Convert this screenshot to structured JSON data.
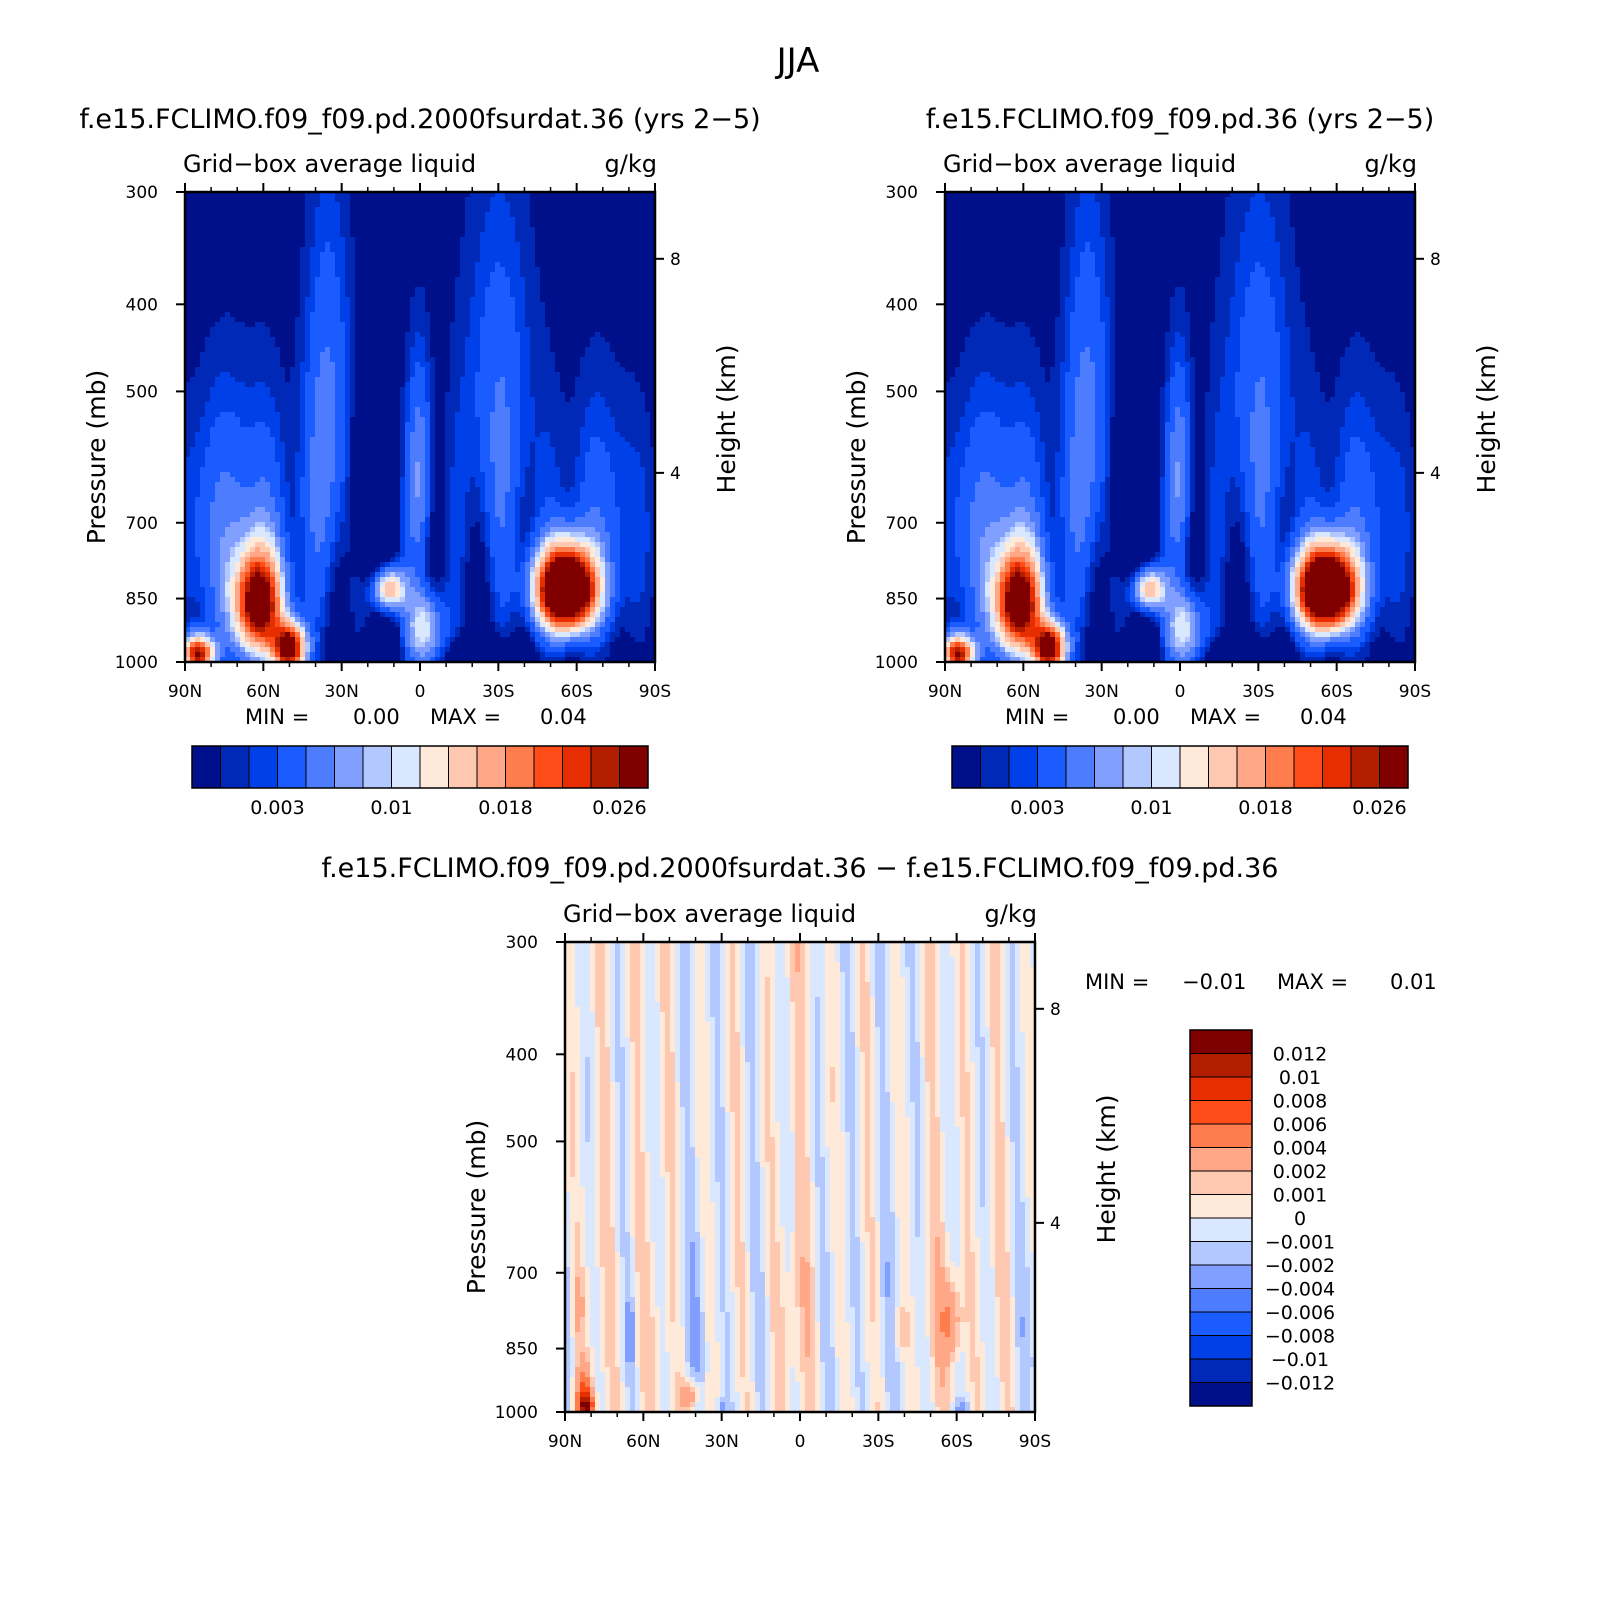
{
  "figure_title": "JJA",
  "variable_label": "Grid−box average liquid",
  "units": "g/kg",
  "colors": {
    "abs_palette": [
      "#000f8a",
      "#0029b8",
      "#0040e8",
      "#1a5cff",
      "#4d7cff",
      "#809fff",
      "#b3c8ff",
      "#d9e8ff",
      "#ffead9",
      "#ffc8b0",
      "#ffa787",
      "#ff7d4d",
      "#ff4d1a",
      "#e62e00",
      "#b31d00",
      "#800000"
    ],
    "diff_palette": [
      "#000f8a",
      "#0029b8",
      "#0040e8",
      "#1a5cff",
      "#4d7cff",
      "#809fff",
      "#b3c8ff",
      "#d9e8ff",
      "#ffead9",
      "#ffc8b0",
      "#ffa787",
      "#ff7d4d",
      "#ff4d1a",
      "#e62e00",
      "#b31d00",
      "#800000"
    ]
  },
  "panels": [
    {
      "id": "case-1",
      "title": "f.e15.FCLIMO.f09_f09.pd.2000fsurdat.36 (yrs 2−5)",
      "min_label": "MIN =",
      "min_value": "0.00",
      "max_label": "MAX =",
      "max_value": "0.04",
      "colorbar_labels": [
        "0.003",
        "0.01",
        "0.018",
        "0.026"
      ]
    },
    {
      "id": "case-2",
      "title": "f.e15.FCLIMO.f09_f09.pd.36 (yrs 2−5)",
      "min_label": "MIN =",
      "min_value": "0.00",
      "max_label": "MAX =",
      "max_value": "0.04",
      "colorbar_labels": [
        "0.003",
        "0.01",
        "0.018",
        "0.026"
      ]
    },
    {
      "id": "difference",
      "title": "f.e15.FCLIMO.f09_f09.pd.2000fsurdat.36 − f.e15.FCLIMO.f09_f09.pd.36",
      "min_label": "MIN =",
      "min_value": "−0.01",
      "max_label": "MAX =",
      "max_value": "0.01",
      "colorbar_labels": [
        "0.012",
        "0.01",
        "0.008",
        "0.006",
        "0.004",
        "0.002",
        "0.001",
        "0",
        "−0.001",
        "−0.002",
        "−0.004",
        "−0.006",
        "−0.008",
        "−0.01",
        "−0.012"
      ]
    }
  ],
  "chart_data": [
    {
      "type": "heatmap",
      "title": "f.e15.FCLIMO.f09_f09.pd.2000fsurdat.36 (yrs 2−5)",
      "subtitle": "Grid−box average liquid",
      "units": "g/kg",
      "xlabel": "",
      "ylabel": "Pressure (mb)",
      "y2label": "Height (km)",
      "x_ticks": [
        "90N",
        "60N",
        "30N",
        "0",
        "30S",
        "60S",
        "90S"
      ],
      "y_ticks": [
        "300",
        "400",
        "500",
        "700",
        "850",
        "1000"
      ],
      "y2_ticks": [
        "8",
        "4"
      ],
      "xlim": [
        90,
        -90
      ],
      "ylim": [
        1000,
        300
      ],
      "levels": [
        0.001,
        0.002,
        0.003,
        0.005,
        0.007,
        0.009,
        0.01,
        0.012,
        0.014,
        0.016,
        0.018,
        0.02,
        0.022,
        0.024,
        0.026
      ],
      "min": 0.0,
      "max": 0.04,
      "features": [
        {
          "label": "60N low-level maximum",
          "lat": 62,
          "pressure": 850,
          "value": 0.028
        },
        {
          "label": "55N surface maximum",
          "lat": 50,
          "pressure": 960,
          "value": 0.03
        },
        {
          "label": "Southern Ocean maximum",
          "lat": -55,
          "pressure": 830,
          "value": 0.04
        },
        {
          "label": "Subtropical stratocumulus",
          "lat": 12,
          "pressure": 830,
          "value": 0.016
        },
        {
          "label": "Dry subsidence",
          "lat": 20,
          "pressure": 650,
          "value": 0.0
        }
      ]
    },
    {
      "type": "heatmap",
      "title": "f.e15.FCLIMO.f09_f09.pd.36 (yrs 2−5)",
      "subtitle": "Grid−box average liquid",
      "units": "g/kg",
      "xlabel": "",
      "ylabel": "Pressure (mb)",
      "y2label": "Height (km)",
      "x_ticks": [
        "90N",
        "60N",
        "30N",
        "0",
        "30S",
        "60S",
        "90S"
      ],
      "y_ticks": [
        "300",
        "400",
        "500",
        "700",
        "850",
        "1000"
      ],
      "y2_ticks": [
        "8",
        "4"
      ],
      "xlim": [
        90,
        -90
      ],
      "ylim": [
        1000,
        300
      ],
      "levels": [
        0.001,
        0.002,
        0.003,
        0.005,
        0.007,
        0.009,
        0.01,
        0.012,
        0.014,
        0.016,
        0.018,
        0.02,
        0.022,
        0.024,
        0.026
      ],
      "min": 0.0,
      "max": 0.04,
      "features": [
        {
          "label": "60N low-level maximum",
          "lat": 62,
          "pressure": 850,
          "value": 0.028
        },
        {
          "label": "55N surface maximum",
          "lat": 50,
          "pressure": 960,
          "value": 0.03
        },
        {
          "label": "Southern Ocean maximum",
          "lat": -55,
          "pressure": 830,
          "value": 0.04
        },
        {
          "label": "Subtropical stratocumulus",
          "lat": 12,
          "pressure": 830,
          "value": 0.016
        },
        {
          "label": "Dry subsidence",
          "lat": 20,
          "pressure": 650,
          "value": 0.0
        }
      ]
    },
    {
      "type": "heatmap",
      "title": "f.e15.FCLIMO.f09_f09.pd.2000fsurdat.36 − f.e15.FCLIMO.f09_f09.pd.36",
      "subtitle": "Grid−box average liquid",
      "units": "g/kg",
      "xlabel": "",
      "ylabel": "Pressure (mb)",
      "y2label": "Height (km)",
      "x_ticks": [
        "90N",
        "60N",
        "30N",
        "0",
        "30S",
        "60S",
        "90S"
      ],
      "y_ticks": [
        "300",
        "400",
        "500",
        "700",
        "850",
        "1000"
      ],
      "y2_ticks": [
        "8",
        "4"
      ],
      "xlim": [
        90,
        -90
      ],
      "ylim": [
        1000,
        300
      ],
      "levels": [
        -0.012,
        -0.01,
        -0.008,
        -0.006,
        -0.004,
        -0.002,
        -0.001,
        0,
        0.001,
        0.002,
        0.004,
        0.006,
        0.008,
        0.01,
        0.012
      ],
      "min": -0.01,
      "max": 0.01,
      "features": [
        {
          "label": "80N surface positive",
          "lat": 82,
          "pressure": 980,
          "value": 0.01
        },
        {
          "label": "60S positive",
          "lat": -58,
          "pressure": 800,
          "value": 0.003
        },
        {
          "label": "40N positive",
          "lat": 42,
          "pressure": 950,
          "value": 0.003
        },
        {
          "label": "Tropics near zero",
          "lat": 10,
          "pressure": 600,
          "value": -0.0005
        }
      ]
    }
  ]
}
